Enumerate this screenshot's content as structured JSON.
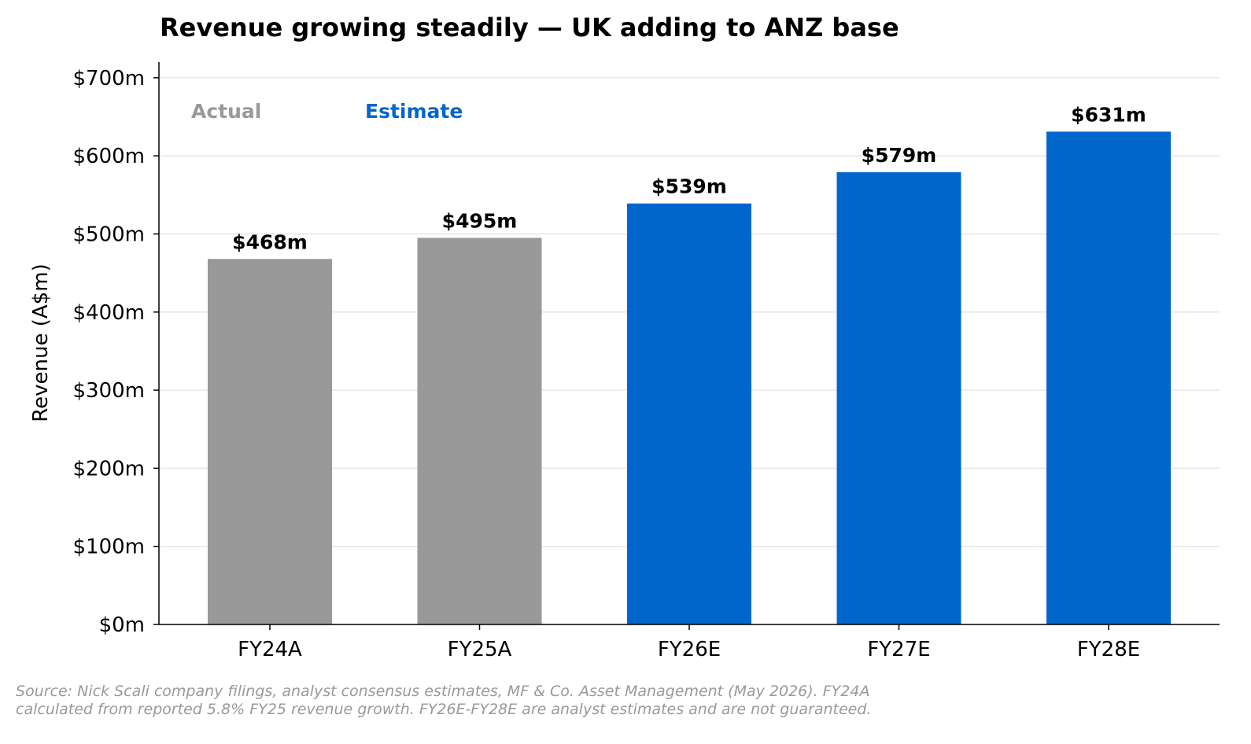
{
  "chart_data": {
    "type": "bar",
    "title": "Revenue growing steadily — UK adding to ANZ base",
    "ylabel": "Revenue (A$m)",
    "xlabel": "",
    "categories": [
      "FY24A",
      "FY25A",
      "FY26E",
      "FY27E",
      "FY28E"
    ],
    "values": [
      468,
      495,
      539,
      579,
      631
    ],
    "value_labels": [
      "$468m",
      "$495m",
      "$539m",
      "$579m",
      "$631m"
    ],
    "bar_status": [
      "actual",
      "actual",
      "estimate",
      "estimate",
      "estimate"
    ],
    "ylim": [
      0,
      720
    ],
    "yticks": [
      0,
      100,
      200,
      300,
      400,
      500,
      600,
      700
    ],
    "ytick_labels": [
      "$0m",
      "$100m",
      "$200m",
      "$300m",
      "$400m",
      "$500m",
      "$600m",
      "$700m"
    ],
    "grid": "horizontal",
    "annotations": [
      {
        "text": "Actual",
        "color": "#999999"
      },
      {
        "text": "Estimate",
        "color": "#0066cc"
      }
    ],
    "colors": {
      "actual": "#999999",
      "estimate": "#0066cc"
    }
  },
  "footnote": {
    "line1": "Source: Nick Scali company filings, analyst consensus estimates, MF & Co. Asset Management (May 2026). FY24A",
    "line2": "calculated from reported 5.8% FY25 revenue growth. FY26E-FY28E are analyst estimates and are not guaranteed."
  }
}
